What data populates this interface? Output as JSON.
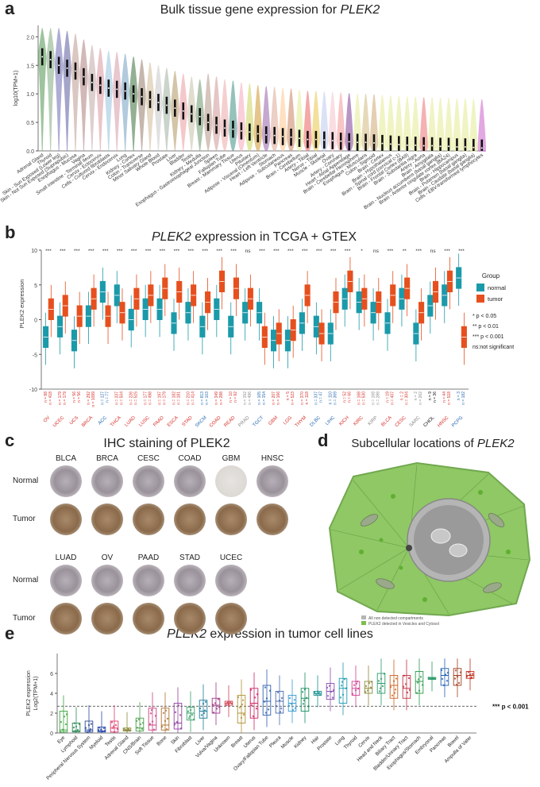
{
  "panels": {
    "a": {
      "letter": "a",
      "title_prefix": "Bulk tissue gene expression for ",
      "gene": "PLEK2"
    },
    "b": {
      "letter": "b",
      "gene": "PLEK2",
      "title_suffix": " expression in TCGA + GTEX"
    },
    "c": {
      "letter": "c",
      "title": "IHC staining of PLEK2"
    },
    "d": {
      "letter": "d",
      "title_prefix": "Subcellular locations of ",
      "gene": "PLEK2"
    },
    "e": {
      "letter": "e",
      "gene": "PLEK2",
      "title_suffix": " expression in tumor cell lines"
    }
  },
  "colors": {
    "normal": "#1b9aaa",
    "tumor": "#e6501e",
    "cell_fill": "#7cbf4a",
    "nucleus": "#9a9a9a"
  },
  "chart_data": [
    {
      "type": "violin",
      "panel": "a",
      "ylabel": "log10(TPM+1)",
      "ylim": [
        0,
        2.2
      ],
      "yticks": [
        0,
        0.5,
        1.0,
        1.5,
        2.0
      ],
      "categories": [
        "Adrenal Gland",
        "Thyroid",
        "Skin - Sun Exposed (Lower leg)",
        "Skin - Not Sun Exposed (Suprapubic)",
        "Esophagus - Mucosa",
        "Vagina",
        "Small Intestine - Terminal Ileum",
        "Cervix - Ectocervix",
        "Cells - Cultured fibroblasts",
        "Cervix - Endocervix",
        "Lung",
        "Kidney - Cortex",
        "Colon - Transverse",
        "Minor Salivary Gland",
        "Whole Blood",
        "Prostate",
        "Liver",
        "Bladder",
        "Testis",
        "Kidney - Medulla",
        "Esophagus - Gastroesophageal Junction",
        "Spleen",
        "Fallopian Tube",
        "Breast - Mammary Tissue",
        "Uterus",
        "Pituitary",
        "Adipose - Visceral (Omentum)",
        "Heart - Left Ventricle",
        "Stomach",
        "Adipose - Subcutaneous",
        "Pancreas",
        "Brain - Cerebellum",
        "Artery - Tibial",
        "Nerve - Tibial",
        "Muscle - Skeletal",
        "Ovary",
        "Artery - Coronary",
        "Heart - Atrial Appendage",
        "Brain - Cerebellar Hemisphere",
        "Esophagus - Muscularis",
        "Colon - Sigmoid",
        "Brain - Cortex",
        "Brain - Hypothalamus",
        "Brain - Spinal cord (cervical c-1)",
        "Brain - Frontal Cortex (BA9)",
        "Brain - Substantia nigra",
        "Artery - Aorta",
        "Brain - Amygdala",
        "Brain - Nucleus accumbens (basal ganglia)",
        "Brain - Anterior cingulate cortex (BA24)",
        "Brain - Hippocampus",
        "Brain - Putamen (basal ganglia)",
        "Brain - Caudate (basal ganglia)",
        "Cells - EBV-transformed lymphocytes"
      ],
      "medians": [
        1.65,
        1.6,
        1.5,
        1.45,
        1.4,
        1.3,
        1.2,
        1.15,
        1.1,
        1.08,
        1.05,
        1.0,
        0.95,
        0.9,
        0.85,
        0.8,
        0.75,
        0.7,
        0.65,
        0.6,
        0.5,
        0.45,
        0.4,
        0.38,
        0.35,
        0.33,
        0.3,
        0.28,
        0.27,
        0.25,
        0.24,
        0.22,
        0.2,
        0.2,
        0.19,
        0.18,
        0.17,
        0.16,
        0.15,
        0.15,
        0.14,
        0.13,
        0.12,
        0.11,
        0.1,
        0.1,
        0.09,
        0.09,
        0.08,
        0.08,
        0.07,
        0.07,
        0.06,
        0.05
      ],
      "colors": [
        "#5e9e5e",
        "#8cb28c",
        "#7777bb",
        "#6a6aa8",
        "#c4a39a",
        "#b78a8a",
        "#c9b0b0",
        "#dd9fa7",
        "#a0c8e0",
        "#d9a3b0",
        "#7fa8c9",
        "#4d7d4d",
        "#a08878",
        "#d7c0a0",
        "#cccccc",
        "#a8b8a8",
        "#b8a070",
        "#eda5aa",
        "#ccc8b0",
        "#7aa07a",
        "#bba090",
        "#d4a0a0",
        "#f0b0b0",
        "#4f9a8f",
        "#f7b0c0",
        "#cfd86a",
        "#d4a040",
        "#a070b0",
        "#e0b0a0",
        "#ffcc99",
        "#d08f70",
        "#e7ee9a",
        "#f07070",
        "#eccd5a",
        "#c4d0f0",
        "#f8c8d0",
        "#f4a0a0",
        "#8a50a0",
        "#e7ee9a",
        "#d8c08a",
        "#d4b080",
        "#e7ee9a",
        "#e7ee9a",
        "#e7ee9a",
        "#e7ee9a",
        "#e7ee9a",
        "#f08080",
        "#e7ee9a",
        "#e7ee9a",
        "#e7ee9a",
        "#e7ee9a",
        "#e7ee9a",
        "#e7ee9a",
        "#d070d0"
      ]
    },
    {
      "type": "boxplot",
      "panel": "b",
      "ylabel": "PLEK2 expression",
      "ylim": [
        -10,
        10
      ],
      "yticks": [
        -10,
        -5,
        0,
        5,
        10
      ],
      "legend": {
        "title": "Group",
        "items": [
          "normal",
          "tumor"
        ],
        "sig": [
          "p < 0.05",
          "p < 0.01",
          "p < 0.001",
          "ns:not significant"
        ],
        "stars": [
          "*",
          "**",
          "***"
        ]
      },
      "categories": [
        "OV",
        "UCEC",
        "UCS",
        "BRCA",
        "ACC",
        "THCA",
        "LUAD",
        "LUSC",
        "PAAD",
        "ESCA",
        "STAD",
        "SKCM",
        "COAD",
        "READ",
        "PRAD",
        "TGCT",
        "GBM",
        "LGG",
        "THYM",
        "DLBC",
        "LIHC",
        "KICH",
        "KIRC",
        "KIRP",
        "BLCA",
        "CESC",
        "SARC",
        "CHOL",
        "HNSC",
        "PCPG"
      ],
      "label_colors": [
        "red",
        "red",
        "red",
        "red",
        "blue",
        "red",
        "red",
        "red",
        "red",
        "red",
        "red",
        "blue",
        "red",
        "red",
        "gray",
        "blue",
        "red",
        "red",
        "red",
        "blue",
        "blue",
        "red",
        "red",
        "gray",
        "red",
        "red",
        "gray",
        "black",
        "red",
        "blue"
      ],
      "significance": [
        "***",
        "***",
        "***",
        "***",
        "***",
        "***",
        "***",
        "***",
        "***",
        "***",
        "***",
        "***",
        "***",
        "***",
        "ns",
        "***",
        "***",
        "***",
        "***",
        "***",
        "***",
        "***",
        "*",
        "ns",
        "***",
        "**",
        "***",
        "ns",
        "***",
        "***"
      ],
      "n_normal": [
        "n = 88",
        "n = 179",
        "n = 56",
        "n = 292",
        "n = 127",
        "n = 337",
        "n = 226",
        "n = 177",
        "n = 197",
        "n = 182",
        "n = 210",
        "n = 813",
        "n = 349",
        "n = 10",
        "n = 152",
        "n = 165",
        "n = 207",
        "n = 5",
        "n = 370",
        "n = 337",
        "n = 110",
        "n = 52",
        "n = 168",
        "n = 168",
        "n = 19",
        "n = 2",
        "n = 2",
        "n = 9",
        "n = 44",
        "n = 3"
      ],
      "n_tumor": [
        "n = 418",
        "n = 179",
        "n = 56",
        "n = 1099",
        "n = 77",
        "n = 504",
        "n = 515",
        "n = 498",
        "n = 179",
        "n = 181",
        "n = 414",
        "n = 103",
        "n = 288",
        "n = 92",
        "n = 496",
        "n = 154",
        "n = 166",
        "n = 523",
        "n = 118",
        "n = 47",
        "n = 369",
        "n = 66",
        "n = 530",
        "n = 288",
        "n = 407",
        "n = 304",
        "n = 262",
        "n = 36",
        "n = 518",
        "n = 182"
      ],
      "normal_median": [
        -2.5,
        -1.0,
        -3.0,
        0.5,
        4.0,
        3.5,
        0.0,
        1.5,
        1.5,
        -0.5,
        1.0,
        -1.0,
        1.5,
        -1.0,
        1.0,
        1.0,
        -3.0,
        -3.0,
        -0.5,
        -1.0,
        -2.0,
        3.0,
        2.5,
        1.0,
        -0.5,
        3.0,
        -2.0,
        2.0,
        3.5,
        6.0
      ],
      "tumor_median": [
        1.5,
        2.0,
        0.5,
        3.0,
        0.5,
        1.0,
        3.0,
        3.5,
        4.5,
        4.0,
        3.5,
        2.5,
        5.5,
        4.5,
        3.0,
        -2.5,
        -2.0,
        -1.5,
        3.5,
        -2.0,
        2.5,
        5.5,
        3.0,
        2.5,
        3.5,
        4.5,
        1.0,
        4.0,
        5.5,
        -2.5
      ]
    },
    {
      "type": "image-grid",
      "panel": "c",
      "rows_top": [
        "BLCA",
        "BRCA",
        "CESC",
        "COAD",
        "GBM",
        "HNSC"
      ],
      "rows_bottom": [
        "LUAD",
        "OV",
        "PAAD",
        "STAD",
        "UCEC"
      ],
      "row_labels": [
        "Normal",
        "Tumor"
      ]
    },
    {
      "type": "diagram",
      "panel": "d",
      "legend": [
        "All non detected compartments",
        "PLEK2 detected in Vesicles and Cytosol"
      ]
    },
    {
      "type": "boxplot",
      "panel": "e",
      "ylabel": "PLEK2 expression\nLog2(TPM+1)",
      "ylim": [
        0,
        8
      ],
      "yticks": [
        0,
        2,
        4,
        6
      ],
      "threshold": 2.7,
      "annotation": "*** p < 0.001",
      "categories": [
        "Eye",
        "Lymphoid",
        "Peripheral Nervous System",
        "Myeloid",
        "Testis",
        "Adrenal Gland",
        "CNS/Brain",
        "Soft Tissue",
        "Bone",
        "Skin",
        "Fibroblast",
        "Liver",
        "Vulva/Vagina",
        "Unknown",
        "Breast",
        "Uterus",
        "Ovary/Fallopian Tube",
        "Pleura",
        "Muscle",
        "Kidney",
        "Hair",
        "Prostate",
        "Lung",
        "Thyroid",
        "Cervix",
        "Head and Neck",
        "Biliary Tract",
        "Bladder/Urinary Tract",
        "Esophagus/Stomach",
        "Embryonal",
        "Pancreas",
        "Bowel",
        "Ampulla of Vater"
      ],
      "medians": [
        0.3,
        0.2,
        0.3,
        0.2,
        0.5,
        0.3,
        0.5,
        0.8,
        0.8,
        1.0,
        2.0,
        2.2,
        2.8,
        3.0,
        2.0,
        3.0,
        3.2,
        3.2,
        3.0,
        3.5,
        4.0,
        4.2,
        4.5,
        4.5,
        4.5,
        5.0,
        4.8,
        4.5,
        5.2,
        5.5,
        5.8,
        5.8,
        5.8
      ],
      "q1": [
        0.1,
        0.1,
        0.1,
        0.1,
        0.1,
        0.2,
        0.2,
        0.3,
        0.3,
        0.4,
        1.3,
        1.5,
        2.0,
        2.8,
        1.0,
        1.5,
        1.8,
        2.0,
        2.2,
        2.2,
        3.8,
        3.4,
        3.0,
        3.8,
        4.0,
        4.0,
        3.5,
        3.5,
        4.0,
        5.4,
        4.8,
        4.8,
        5.5
      ],
      "q3": [
        2.2,
        1.0,
        1.2,
        0.6,
        1.2,
        0.5,
        1.5,
        2.5,
        2.5,
        3.0,
        2.6,
        3.3,
        3.5,
        3.2,
        3.8,
        4.5,
        4.8,
        4.2,
        3.8,
        4.5,
        4.2,
        5.0,
        5.5,
        5.2,
        5.2,
        6.0,
        5.8,
        5.8,
        6.2,
        5.6,
        6.5,
        6.5,
        6.2
      ],
      "colors": [
        "#3aa33a",
        "#2e8b57",
        "#2b4a9a",
        "#2b4aaa",
        "#e04070",
        "#8a8a3a",
        "#4aa04a",
        "#c84080",
        "#b07030",
        "#9040a0",
        "#3aa06a",
        "#1a7a9a",
        "#a03a8a",
        "#d04050",
        "#b09030",
        "#d02060",
        "#3060b0",
        "#4a6ab0",
        "#3a9ad0",
        "#1a9060",
        "#1a9090",
        "#8a50b0",
        "#1a9ab0",
        "#d04090",
        "#8a8a3a",
        "#2a9a6a",
        "#d06020",
        "#c03040",
        "#2a9a4a",
        "#2a9a6a",
        "#2060b0",
        "#a04020",
        "#c03020"
      ]
    }
  ]
}
